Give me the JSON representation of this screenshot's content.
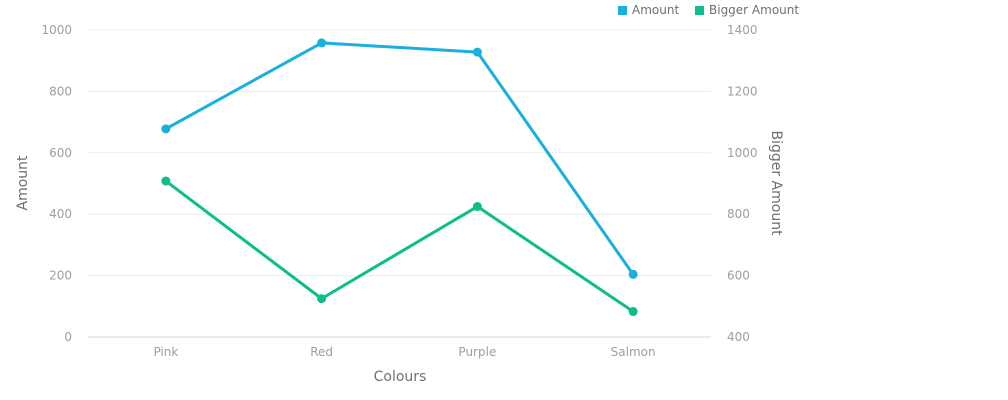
{
  "chart_data": {
    "type": "line",
    "categories": [
      "Pink",
      "Red",
      "Purple",
      "Salmon"
    ],
    "series": [
      {
        "name": "Amount",
        "axis": "left",
        "color": "#1aafdd",
        "values": [
          678,
          958,
          928,
          204
        ]
      },
      {
        "name": "Bigger Amount",
        "axis": "right",
        "color": "#0dbd8b",
        "values": [
          908,
          525,
          825,
          483
        ]
      }
    ],
    "xlabel": "Colours",
    "ylabel": "Amount",
    "y2label": "Bigger Amount",
    "ylim": [
      0,
      1000
    ],
    "y2lim": [
      400,
      1400
    ],
    "yticks": [
      0,
      200,
      400,
      600,
      800,
      1000
    ],
    "y2ticks": [
      400,
      600,
      800,
      1000,
      1200,
      1400
    ],
    "grid": true,
    "legend_position": "top-right"
  }
}
